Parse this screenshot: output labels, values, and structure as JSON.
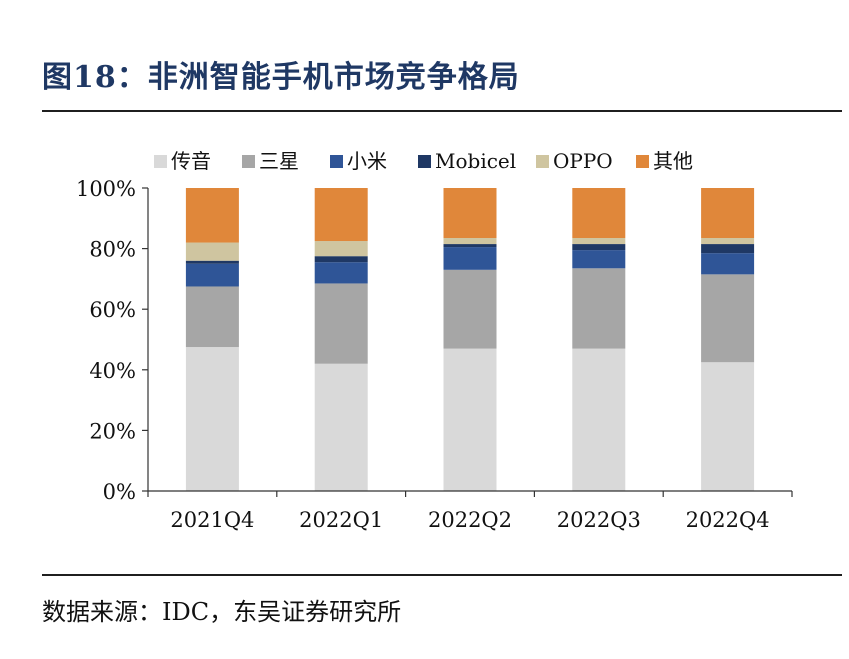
{
  "header": {
    "title": "图18：非洲智能手机市场竞争格局"
  },
  "footer": {
    "source": "数据来源：IDC，东吴证券研究所"
  },
  "chart_data": {
    "type": "bar",
    "stacked": true,
    "normalized": true,
    "categories": [
      "2021Q4",
      "2022Q1",
      "2022Q2",
      "2022Q3",
      "2022Q4"
    ],
    "series": [
      {
        "name": "传音",
        "color": "#d9d9d9",
        "values": [
          47.5,
          42,
          47,
          47,
          42.5
        ]
      },
      {
        "name": "三星",
        "color": "#a6a6a6",
        "values": [
          20,
          26.5,
          26,
          26.5,
          29
        ]
      },
      {
        "name": "小米",
        "color": "#2f5597",
        "values": [
          7.5,
          7,
          7.5,
          6,
          7
        ]
      },
      {
        "name": "Mobicel",
        "color": "#1f3864",
        "values": [
          1,
          2,
          1,
          2,
          3
        ]
      },
      {
        "name": "OPPO",
        "color": "#cfc5a0",
        "values": [
          6,
          5,
          2,
          2,
          2
        ]
      },
      {
        "name": "其他",
        "color": "#e0873a",
        "values": [
          18,
          17.5,
          16.5,
          16.5,
          16.5
        ]
      }
    ],
    "ylim": [
      0,
      100
    ],
    "yticks": [
      "0%",
      "20%",
      "40%",
      "60%",
      "80%",
      "100%"
    ],
    "ytick_values": [
      0,
      20,
      40,
      60,
      80,
      100
    ],
    "grid": false,
    "legend": "top"
  }
}
